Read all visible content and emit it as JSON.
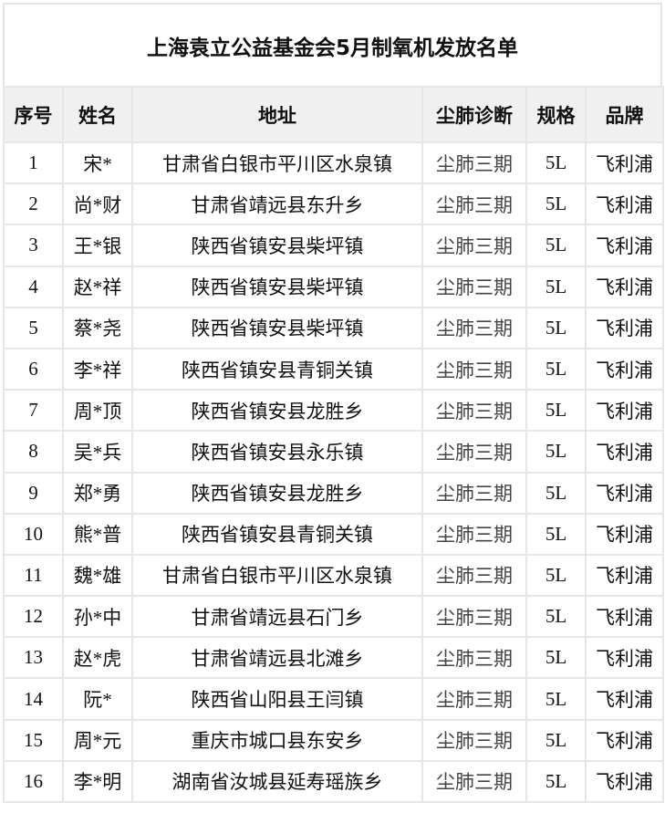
{
  "title": "上海袁立公益基金会5月制氧机发放名单",
  "headers": [
    "序号",
    "姓名",
    "地址",
    "尘肺诊断",
    "规格",
    "品牌"
  ],
  "rows": [
    [
      "1",
      "宋*",
      "甘肃省白银市平川区水泉镇",
      "尘肺三期",
      "5L",
      "飞利浦"
    ],
    [
      "2",
      "尚*财",
      "甘肃省靖远县东升乡",
      "尘肺三期",
      "5L",
      "飞利浦"
    ],
    [
      "3",
      "王*银",
      "陕西省镇安县柴坪镇",
      "尘肺三期",
      "5L",
      "飞利浦"
    ],
    [
      "4",
      "赵*祥",
      "陕西省镇安县柴坪镇",
      "尘肺三期",
      "5L",
      "飞利浦"
    ],
    [
      "5",
      "蔡*尧",
      "陕西省镇安县柴坪镇",
      "尘肺三期",
      "5L",
      "飞利浦"
    ],
    [
      "6",
      "李*祥",
      "陕西省镇安县青铜关镇",
      "尘肺三期",
      "5L",
      "飞利浦"
    ],
    [
      "7",
      "周*顶",
      "陕西省镇安县龙胜乡",
      "尘肺三期",
      "5L",
      "飞利浦"
    ],
    [
      "8",
      "吴*兵",
      "陕西省镇安县永乐镇",
      "尘肺三期",
      "5L",
      "飞利浦"
    ],
    [
      "9",
      "郑*勇",
      "陕西省镇安县龙胜乡",
      "尘肺三期",
      "5L",
      "飞利浦"
    ],
    [
      "10",
      "熊*普",
      "陕西省镇安县青铜关镇",
      "尘肺三期",
      "5L",
      "飞利浦"
    ],
    [
      "11",
      "魏*雄",
      "甘肃省白银市平川区水泉镇",
      "尘肺三期",
      "5L",
      "飞利浦"
    ],
    [
      "12",
      "孙*中",
      "甘肃省靖远县石门乡",
      "尘肺三期",
      "5L",
      "飞利浦"
    ],
    [
      "13",
      "赵*虎",
      "甘肃省靖远县北滩乡",
      "尘肺三期",
      "5L",
      "飞利浦"
    ],
    [
      "14",
      "阮*",
      "陕西省山阳县王闫镇",
      "尘肺三期",
      "5L",
      "飞利浦"
    ],
    [
      "15",
      "周*元",
      "重庆市城口县东安乡",
      "尘肺三期",
      "5L",
      "飞利浦"
    ],
    [
      "16",
      "李*明",
      "湖南省汝城县延寿瑶族乡",
      "尘肺三期",
      "5L",
      "飞利浦"
    ]
  ]
}
